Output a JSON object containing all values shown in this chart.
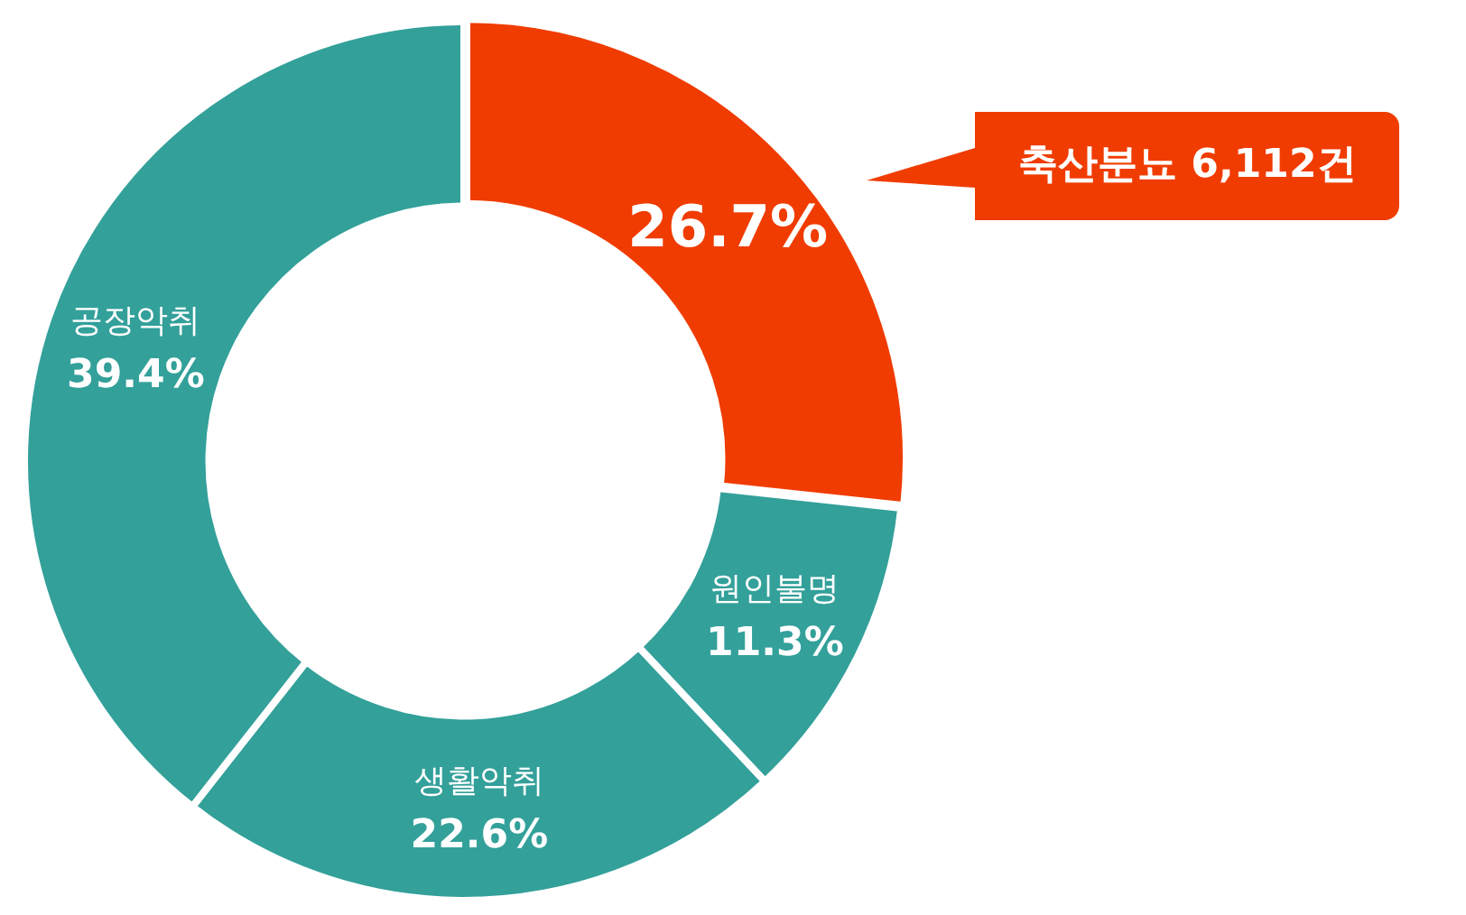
{
  "chart_data": {
    "type": "donut",
    "categories": [
      "축산분뇨",
      "원인불명",
      "생활악취",
      "공장악취"
    ],
    "values": [
      26.7,
      11.3,
      22.6,
      39.4
    ],
    "colors": [
      "#f03c00",
      "#33a09a",
      "#33a09a",
      "#33a09a"
    ],
    "value_labels": [
      "26.7%",
      "11.3%",
      "22.6%",
      "39.4%"
    ],
    "legend": false,
    "annotations": [
      {
        "text": "6,112건",
        "x": "축산분뇨"
      }
    ]
  }
}
